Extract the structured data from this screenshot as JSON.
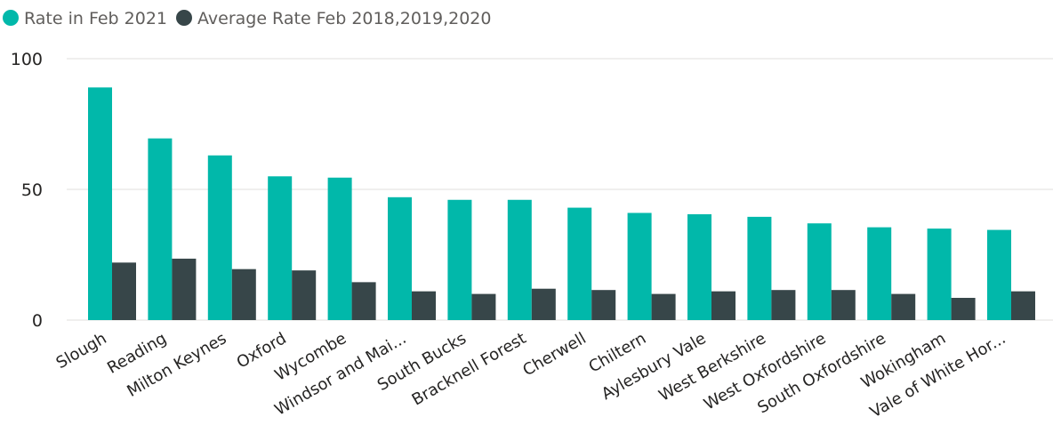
{
  "chart_data": {
    "type": "bar",
    "legend_position": "top-left",
    "grid": true,
    "ylim": [
      0,
      100
    ],
    "yticks": [
      0,
      50,
      100
    ],
    "categories": [
      "Slough",
      "Reading",
      "Milton Keynes",
      "Oxford",
      "Wycombe",
      "Windsor and Mai...",
      "South Bucks",
      "Bracknell Forest",
      "Cherwell",
      "Chiltern",
      "Aylesbury Vale",
      "West Berkshire",
      "West Oxfordshire",
      "South Oxfordshire",
      "Wokingham",
      "Vale of White Hor..."
    ],
    "series": [
      {
        "name": "Rate in Feb 2021",
        "color": "#01b8aa",
        "values": [
          89,
          69.5,
          63,
          55,
          54.5,
          47,
          46,
          46,
          43,
          41,
          40.5,
          39.5,
          37,
          35.5,
          35,
          34.5
        ]
      },
      {
        "name": "Average Rate Feb 2018,2019,2020",
        "color": "#374649",
        "values": [
          22,
          23.5,
          19.5,
          19,
          14.5,
          11,
          10,
          12,
          11.5,
          10,
          11,
          11.5,
          11.5,
          10,
          8.5,
          11
        ]
      }
    ]
  }
}
